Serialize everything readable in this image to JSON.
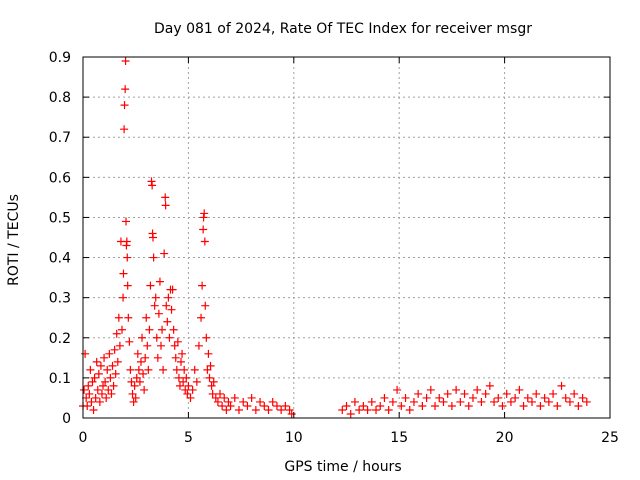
{
  "chart_data": {
    "type": "scatter",
    "title": "Day 081 of 2024, Rate Of TEC Index for receiver msgr",
    "xlabel": "GPS time / hours",
    "ylabel": "ROTI / TECUs",
    "xlim": [
      0,
      25
    ],
    "ylim": [
      0,
      0.9
    ],
    "xticks": [
      0,
      5,
      10,
      15,
      20,
      25
    ],
    "xtick_labels": [
      "0",
      "5",
      "10",
      "15",
      "20",
      "25"
    ],
    "yticks": [
      0,
      0.1,
      0.2,
      0.3,
      0.4,
      0.5,
      0.6,
      0.7,
      0.8,
      0.9
    ],
    "ytick_labels": [
      "0",
      "0.1",
      "0.2",
      "0.3",
      "0.4",
      "0.5",
      "0.6",
      "0.7",
      "0.8",
      "0.9"
    ],
    "grid": true,
    "marker": "+",
    "color": "#ff0000",
    "series": [
      {
        "name": "ROTI",
        "points": [
          [
            0.0,
            0.03
          ],
          [
            0.05,
            0.07
          ],
          [
            0.1,
            0.16
          ],
          [
            0.15,
            0.05
          ],
          [
            0.2,
            0.03
          ],
          [
            0.25,
            0.08
          ],
          [
            0.3,
            0.06
          ],
          [
            0.35,
            0.12
          ],
          [
            0.4,
            0.04
          ],
          [
            0.45,
            0.09
          ],
          [
            0.5,
            0.02
          ],
          [
            0.55,
            0.1
          ],
          [
            0.6,
            0.05
          ],
          [
            0.65,
            0.14
          ],
          [
            0.7,
            0.07
          ],
          [
            0.75,
            0.11
          ],
          [
            0.8,
            0.04
          ],
          [
            0.85,
            0.13
          ],
          [
            0.9,
            0.06
          ],
          [
            0.95,
            0.08
          ],
          [
            1.0,
            0.15
          ],
          [
            1.05,
            0.09
          ],
          [
            1.1,
            0.05
          ],
          [
            1.15,
            0.12
          ],
          [
            1.2,
            0.07
          ],
          [
            1.25,
            0.16
          ],
          [
            1.3,
            0.1
          ],
          [
            1.35,
            0.06
          ],
          [
            1.4,
            0.13
          ],
          [
            1.45,
            0.08
          ],
          [
            1.5,
            0.17
          ],
          [
            1.55,
            0.11
          ],
          [
            1.6,
            0.21
          ],
          [
            1.65,
            0.14
          ],
          [
            1.7,
            0.25
          ],
          [
            1.75,
            0.18
          ],
          [
            1.8,
            0.44
          ],
          [
            1.85,
            0.22
          ],
          [
            1.9,
            0.3
          ],
          [
            1.92,
            0.36
          ],
          [
            1.95,
            0.72
          ],
          [
            1.97,
            0.78
          ],
          [
            2.0,
            0.82
          ],
          [
            2.02,
            0.89
          ],
          [
            2.04,
            0.49
          ],
          [
            2.06,
            0.43
          ],
          [
            2.08,
            0.44
          ],
          [
            2.1,
            0.4
          ],
          [
            2.12,
            0.33
          ],
          [
            2.15,
            0.25
          ],
          [
            2.2,
            0.19
          ],
          [
            2.25,
            0.12
          ],
          [
            2.3,
            0.09
          ],
          [
            2.35,
            0.06
          ],
          [
            2.4,
            0.04
          ],
          [
            2.45,
            0.08
          ],
          [
            2.5,
            0.05
          ],
          [
            2.55,
            0.1
          ],
          [
            2.6,
            0.16
          ],
          [
            2.65,
            0.12
          ],
          [
            2.7,
            0.09
          ],
          [
            2.75,
            0.14
          ],
          [
            2.8,
            0.2
          ],
          [
            2.85,
            0.11
          ],
          [
            2.9,
            0.07
          ],
          [
            2.95,
            0.15
          ],
          [
            3.0,
            0.25
          ],
          [
            3.05,
            0.18
          ],
          [
            3.1,
            0.12
          ],
          [
            3.15,
            0.22
          ],
          [
            3.2,
            0.33
          ],
          [
            3.25,
            0.59
          ],
          [
            3.28,
            0.58
          ],
          [
            3.3,
            0.46
          ],
          [
            3.32,
            0.45
          ],
          [
            3.35,
            0.4
          ],
          [
            3.4,
            0.28
          ],
          [
            3.45,
            0.3
          ],
          [
            3.5,
            0.2
          ],
          [
            3.55,
            0.15
          ],
          [
            3.6,
            0.26
          ],
          [
            3.65,
            0.34
          ],
          [
            3.7,
            0.18
          ],
          [
            3.75,
            0.22
          ],
          [
            3.8,
            0.12
          ],
          [
            3.85,
            0.41
          ],
          [
            3.9,
            0.55
          ],
          [
            3.92,
            0.53
          ],
          [
            3.95,
            0.28
          ],
          [
            4.0,
            0.24
          ],
          [
            4.05,
            0.3
          ],
          [
            4.1,
            0.2
          ],
          [
            4.15,
            0.32
          ],
          [
            4.2,
            0.27
          ],
          [
            4.25,
            0.32
          ],
          [
            4.3,
            0.22
          ],
          [
            4.35,
            0.18
          ],
          [
            4.4,
            0.15
          ],
          [
            4.45,
            0.12
          ],
          [
            4.5,
            0.19
          ],
          [
            4.55,
            0.1
          ],
          [
            4.6,
            0.08
          ],
          [
            4.65,
            0.14
          ],
          [
            4.7,
            0.16
          ],
          [
            4.75,
            0.09
          ],
          [
            4.8,
            0.12
          ],
          [
            4.85,
            0.07
          ],
          [
            4.9,
            0.1
          ],
          [
            4.95,
            0.06
          ],
          [
            5.0,
            0.08
          ],
          [
            5.1,
            0.05
          ],
          [
            5.2,
            0.07
          ],
          [
            5.3,
            0.12
          ],
          [
            5.4,
            0.09
          ],
          [
            5.5,
            0.18
          ],
          [
            5.6,
            0.25
          ],
          [
            5.65,
            0.33
          ],
          [
            5.7,
            0.47
          ],
          [
            5.72,
            0.5
          ],
          [
            5.75,
            0.51
          ],
          [
            5.78,
            0.44
          ],
          [
            5.8,
            0.28
          ],
          [
            5.85,
            0.2
          ],
          [
            5.9,
            0.12
          ],
          [
            5.95,
            0.16
          ],
          [
            6.0,
            0.1
          ],
          [
            6.05,
            0.13
          ],
          [
            6.1,
            0.08
          ],
          [
            6.15,
            0.06
          ],
          [
            6.2,
            0.09
          ],
          [
            6.3,
            0.05
          ],
          [
            6.4,
            0.04
          ],
          [
            6.5,
            0.06
          ],
          [
            6.6,
            0.03
          ],
          [
            6.7,
            0.05
          ],
          [
            6.8,
            0.02
          ],
          [
            6.9,
            0.04
          ],
          [
            7.0,
            0.03
          ],
          [
            7.2,
            0.05
          ],
          [
            7.4,
            0.02
          ],
          [
            7.6,
            0.04
          ],
          [
            7.8,
            0.03
          ],
          [
            8.0,
            0.05
          ],
          [
            8.2,
            0.02
          ],
          [
            8.4,
            0.04
          ],
          [
            8.6,
            0.03
          ],
          [
            8.8,
            0.02
          ],
          [
            9.0,
            0.04
          ],
          [
            9.2,
            0.03
          ],
          [
            9.4,
            0.02
          ],
          [
            9.6,
            0.03
          ],
          [
            9.8,
            0.02
          ],
          [
            9.9,
            0.01
          ],
          [
            12.3,
            0.02
          ],
          [
            12.5,
            0.03
          ],
          [
            12.7,
            0.01
          ],
          [
            12.9,
            0.04
          ],
          [
            13.1,
            0.02
          ],
          [
            13.3,
            0.03
          ],
          [
            13.5,
            0.02
          ],
          [
            13.7,
            0.04
          ],
          [
            13.9,
            0.02
          ],
          [
            14.1,
            0.03
          ],
          [
            14.3,
            0.05
          ],
          [
            14.5,
            0.02
          ],
          [
            14.7,
            0.04
          ],
          [
            14.9,
            0.07
          ],
          [
            15.1,
            0.03
          ],
          [
            15.3,
            0.05
          ],
          [
            15.5,
            0.02
          ],
          [
            15.7,
            0.04
          ],
          [
            15.9,
            0.06
          ],
          [
            16.1,
            0.03
          ],
          [
            16.3,
            0.05
          ],
          [
            16.5,
            0.07
          ],
          [
            16.7,
            0.03
          ],
          [
            16.9,
            0.05
          ],
          [
            17.1,
            0.04
          ],
          [
            17.3,
            0.06
          ],
          [
            17.5,
            0.03
          ],
          [
            17.7,
            0.07
          ],
          [
            17.9,
            0.04
          ],
          [
            18.1,
            0.06
          ],
          [
            18.3,
            0.03
          ],
          [
            18.5,
            0.05
          ],
          [
            18.7,
            0.07
          ],
          [
            18.9,
            0.04
          ],
          [
            19.1,
            0.06
          ],
          [
            19.3,
            0.08
          ],
          [
            19.5,
            0.04
          ],
          [
            19.7,
            0.05
          ],
          [
            19.9,
            0.03
          ],
          [
            20.1,
            0.06
          ],
          [
            20.3,
            0.04
          ],
          [
            20.5,
            0.05
          ],
          [
            20.7,
            0.07
          ],
          [
            20.9,
            0.03
          ],
          [
            21.1,
            0.05
          ],
          [
            21.3,
            0.04
          ],
          [
            21.5,
            0.06
          ],
          [
            21.7,
            0.03
          ],
          [
            21.9,
            0.05
          ],
          [
            22.1,
            0.04
          ],
          [
            22.3,
            0.06
          ],
          [
            22.5,
            0.03
          ],
          [
            22.7,
            0.08
          ],
          [
            22.9,
            0.05
          ],
          [
            23.1,
            0.04
          ],
          [
            23.3,
            0.06
          ],
          [
            23.5,
            0.03
          ],
          [
            23.7,
            0.05
          ],
          [
            23.9,
            0.04
          ]
        ]
      }
    ]
  }
}
